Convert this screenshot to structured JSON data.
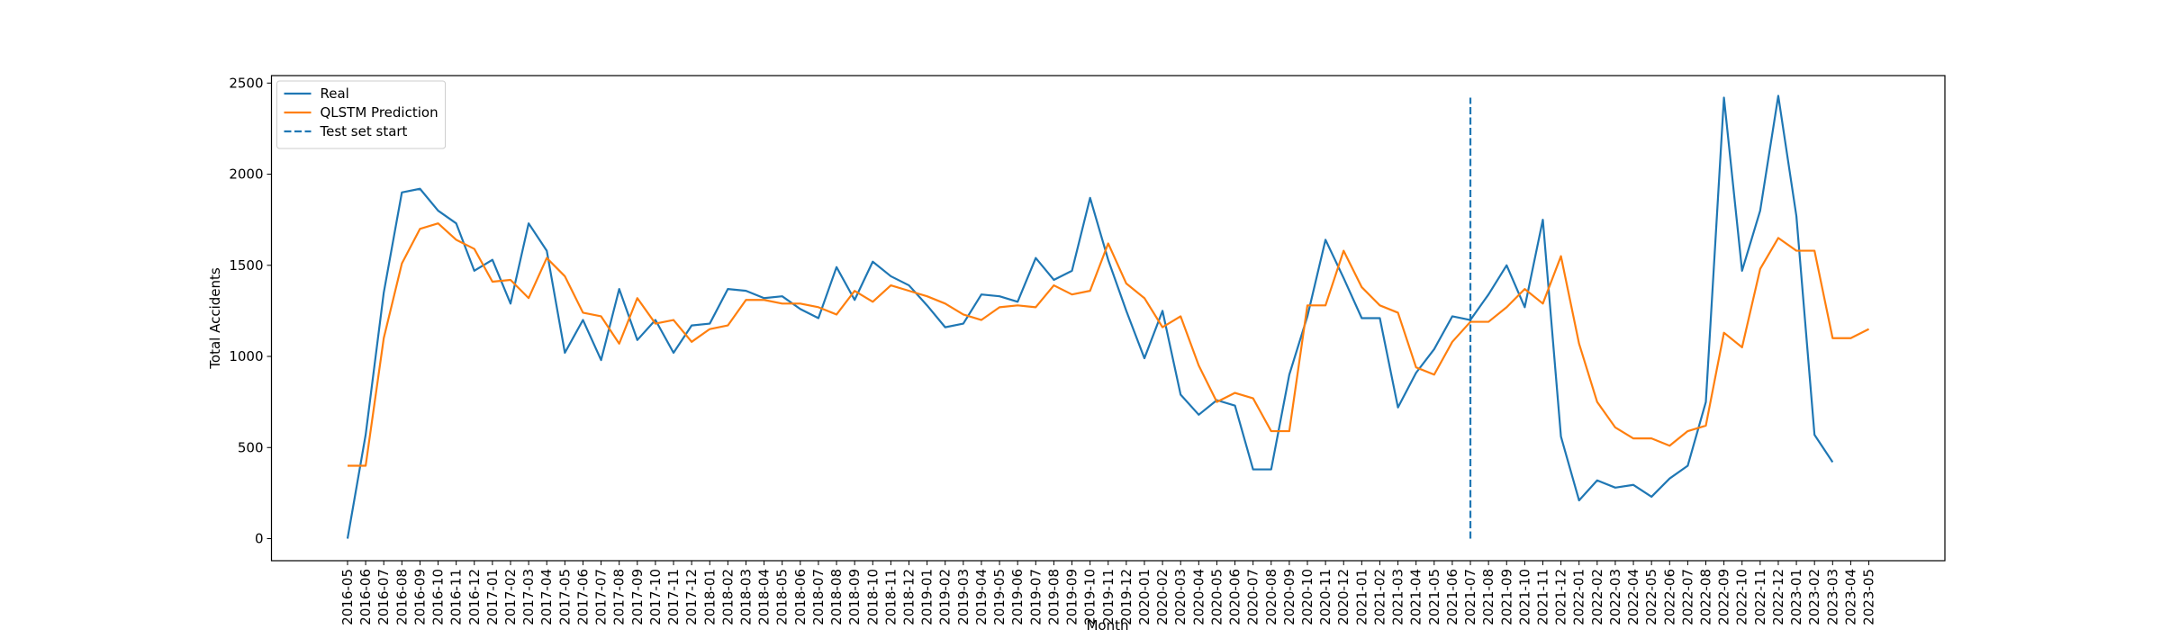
{
  "chart_data": {
    "type": "line",
    "x_label": "Month",
    "y_label": "Total Accidents",
    "categories": [
      "2016-05",
      "2016-06",
      "2016-07",
      "2016-08",
      "2016-09",
      "2016-10",
      "2016-11",
      "2016-12",
      "2017-01",
      "2017-02",
      "2017-03",
      "2017-04",
      "2017-05",
      "2017-06",
      "2017-07",
      "2017-08",
      "2017-09",
      "2017-10",
      "2017-11",
      "2017-12",
      "2018-01",
      "2018-02",
      "2018-03",
      "2018-04",
      "2018-05",
      "2018-06",
      "2018-07",
      "2018-08",
      "2018-09",
      "2018-10",
      "2018-11",
      "2018-12",
      "2019-01",
      "2019-02",
      "2019-03",
      "2019-04",
      "2019-05",
      "2019-06",
      "2019-07",
      "2019-08",
      "2019-09",
      "2019-10",
      "2019-11",
      "2019-12",
      "2020-01",
      "2020-02",
      "2020-03",
      "2020-04",
      "2020-05",
      "2020-06",
      "2020-07",
      "2020-08",
      "2020-09",
      "2020-10",
      "2020-11",
      "2020-12",
      "2021-01",
      "2021-02",
      "2021-03",
      "2021-04",
      "2021-05",
      "2021-06",
      "2021-07",
      "2021-08",
      "2021-09",
      "2021-10",
      "2021-11",
      "2021-12",
      "2022-01",
      "2022-02",
      "2022-03",
      "2022-04",
      "2022-05",
      "2022-06",
      "2022-07",
      "2022-08",
      "2022-09",
      "2022-10",
      "2022-11",
      "2022-12",
      "2023-01",
      "2023-02",
      "2023-03",
      "2023-04",
      "2023-05"
    ],
    "series": [
      {
        "name": "Real",
        "color": "#1f77b4",
        "values": [
          0,
          570,
          1350,
          1900,
          1920,
          1800,
          1730,
          1470,
          1530,
          1290,
          1730,
          1580,
          1020,
          1200,
          980,
          1370,
          1090,
          1200,
          1020,
          1170,
          1180,
          1370,
          1360,
          1320,
          1330,
          1260,
          1210,
          1490,
          1310,
          1520,
          1440,
          1390,
          1280,
          1160,
          1180,
          1340,
          1330,
          1300,
          1540,
          1420,
          1470,
          1870,
          1530,
          1250,
          990,
          1250,
          790,
          680,
          760,
          730,
          380,
          380,
          900,
          1220,
          1640,
          1430,
          1210,
          1210,
          720,
          910,
          1040,
          1220,
          1200,
          1340,
          1500,
          1270,
          1750,
          560,
          210,
          320,
          280,
          295,
          230,
          330,
          400,
          750,
          2420,
          1470,
          1800,
          2430,
          1770,
          570,
          420,
          null,
          null
        ]
      },
      {
        "name": "QLSTM Prediction",
        "color": "#ff7f0e",
        "values": [
          400,
          400,
          1100,
          1510,
          1700,
          1730,
          1640,
          1590,
          1410,
          1420,
          1320,
          1540,
          1440,
          1240,
          1220,
          1070,
          1320,
          1180,
          1200,
          1080,
          1150,
          1170,
          1310,
          1310,
          1290,
          1290,
          1270,
          1230,
          1360,
          1300,
          1390,
          1360,
          1330,
          1290,
          1230,
          1200,
          1270,
          1280,
          1270,
          1390,
          1340,
          1360,
          1620,
          1400,
          1320,
          1160,
          1220,
          950,
          750,
          800,
          770,
          590,
          590,
          1280,
          1280,
          1580,
          1380,
          1280,
          1240,
          940,
          900,
          1080,
          1190,
          1190,
          1270,
          1370,
          1290,
          1550,
          1070,
          750,
          610,
          550,
          550,
          510,
          590,
          620,
          1130,
          1050,
          1480,
          1650,
          1580,
          1580,
          1100,
          1100,
          1150
        ]
      }
    ],
    "vertical_line": {
      "name": "Test set start",
      "x": "2021-07",
      "values": [
        0,
        2420
      ],
      "color": "#1f77b4",
      "linestyle": "dashed"
    },
    "ylim": [
      -121,
      2541
    ],
    "yticks": [
      0,
      500,
      1000,
      1500,
      2000,
      2500
    ],
    "legend": "upper left",
    "grid": false
  }
}
